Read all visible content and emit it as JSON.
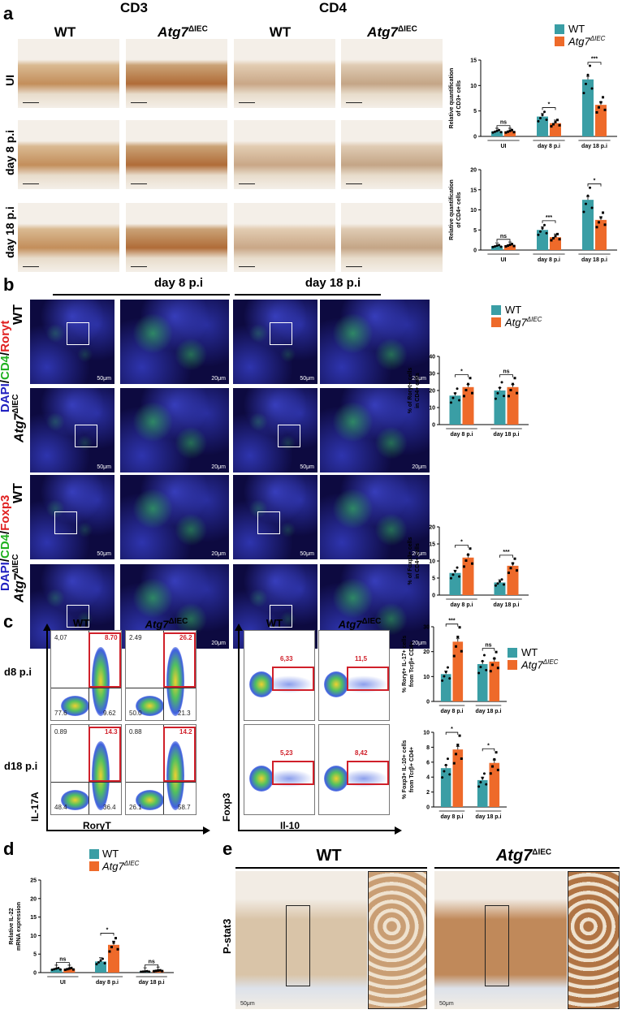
{
  "colors": {
    "wt": "#3a9ea5",
    "ko": "#ee6a2a",
    "gate": "#d0202a"
  },
  "panel_labels": {
    "a": "a",
    "b": "b",
    "c": "c",
    "d": "d",
    "e": "e"
  },
  "legend": {
    "wt": "WT",
    "ko_base": "Atg7",
    "ko_sup": "ΔIEC"
  },
  "panel_a": {
    "stain_cd3": "CD3",
    "stain_cd4": "CD4",
    "col_wt": "WT",
    "col_ko": "Atg7",
    "col_ko_sup": "ΔIEC",
    "rows": [
      "UI",
      "day 8 p.i",
      "day 18 p.i"
    ]
  },
  "panel_b": {
    "day8": "day 8 p.i",
    "day18": "day 18 p.i",
    "row_wt": "WT",
    "row_ko": "Atg7",
    "row_ko_sup": "ΔIEC",
    "stain1": {
      "dapi": "DAPI",
      "sep1": "/",
      "cd4": "CD4",
      "sep2": "/",
      "marker": "Roryt"
    },
    "stain2": {
      "dapi": "DAPI",
      "sep1": "/",
      "cd4": "CD4",
      "sep2": "/",
      "marker": "Foxp3"
    },
    "scale_50": "50μm",
    "scale_20": "20μm"
  },
  "panel_c": {
    "col_wt": "WT",
    "col_ko": "Atg7",
    "col_ko_sup": "ΔIEC",
    "row_d8": "d8 p.i",
    "row_d18": "d18 p.i",
    "y_left": "IL-17A",
    "x_left": "RorγT",
    "y_right": "Foxp3",
    "x_right": "Il-10",
    "quadrants": {
      "wt_d8": {
        "ul": "4,07",
        "ur": "8.70",
        "ll": "77.6",
        "lr": "9.62"
      },
      "ko_d8": {
        "ul": "2.49",
        "ur": "26.2",
        "ll": "50.0",
        "lr": "21.3"
      },
      "wt_d18": {
        "ul": "0.89",
        "ur": "14.3",
        "ll": "48.4",
        "lr": "36.4"
      },
      "ko_d18": {
        "ul": "0.88",
        "ur": "14.2",
        "ll": "26.1",
        "lr": "58.7"
      }
    },
    "foxp3_gates": {
      "wt_d8": "6,33",
      "ko_d8": "11,5",
      "wt_d18": "5,23",
      "ko_d18": "8,42"
    }
  },
  "panel_e": {
    "wt": "WT",
    "ko": "Atg7",
    "ko_sup": "ΔIEC",
    "row": "P-stat3",
    "scale_50": "50μm"
  },
  "chart_data": [
    {
      "id": "a_cd3",
      "type": "bar",
      "ylabel": [
        "Relative quantification",
        "of CD3+ cells"
      ],
      "categories": [
        "UI",
        "day 8 p.i",
        "day 18 p.i"
      ],
      "ylim": [
        0,
        15
      ],
      "yticks": [
        0,
        5,
        10,
        15
      ],
      "series": [
        {
          "name": "WT",
          "values": [
            1.0,
            3.9,
            11.2
          ]
        },
        {
          "name": "Atg7ΔIEC",
          "values": [
            1.0,
            2.6,
            6.2
          ]
        }
      ],
      "significance": [
        "ns",
        "*",
        "***"
      ]
    },
    {
      "id": "a_cd4",
      "type": "bar",
      "ylabel": [
        "Relative quantification",
        "of CD4+ cells"
      ],
      "categories": [
        "UI",
        "day 8 p.i",
        "day 18 p.i"
      ],
      "ylim": [
        0,
        20
      ],
      "yticks": [
        0,
        5,
        10,
        15,
        20
      ],
      "series": [
        {
          "name": "WT",
          "values": [
            1.0,
            5.0,
            12.5
          ]
        },
        {
          "name": "Atg7ΔIEC",
          "values": [
            1.2,
            3.2,
            7.5
          ]
        }
      ],
      "significance": [
        "ns",
        "***",
        "*"
      ]
    },
    {
      "id": "b_roryt",
      "type": "bar",
      "ylabel": [
        "% of Roryt+ cells",
        "in CD4+ cells"
      ],
      "categories": [
        "day 8 p.i",
        "day 18 p.i"
      ],
      "ylim": [
        0,
        40
      ],
      "yticks": [
        0,
        10,
        20,
        30,
        40
      ],
      "series": [
        {
          "name": "WT",
          "values": [
            17,
            20
          ]
        },
        {
          "name": "Atg7ΔIEC",
          "values": [
            22,
            22
          ]
        }
      ],
      "significance": [
        "*",
        "ns"
      ]
    },
    {
      "id": "b_foxp3",
      "type": "bar",
      "ylabel": [
        "% of Foxp3+ cells",
        "in CD4+ cells"
      ],
      "categories": [
        "day 8 p.i",
        "day 18 p.i"
      ],
      "ylim": [
        0,
        20
      ],
      "yticks": [
        0,
        5,
        10,
        15,
        20
      ],
      "series": [
        {
          "name": "WT",
          "values": [
            6.5,
            3.7
          ]
        },
        {
          "name": "Atg7ΔIEC",
          "values": [
            11,
            8.6
          ]
        }
      ],
      "significance": [
        "*",
        "***"
      ]
    },
    {
      "id": "c_roryt_il17",
      "type": "bar",
      "ylabel": [
        "% Rorγt+ IL-17+ cells",
        "from Tcrβ+ CD4+"
      ],
      "categories": [
        "day 8 p.i",
        "day 18 p.i"
      ],
      "ylim": [
        0,
        30
      ],
      "yticks": [
        0,
        10,
        20,
        30
      ],
      "series": [
        {
          "name": "WT",
          "values": [
            11,
            15
          ]
        },
        {
          "name": "Atg7ΔIEC",
          "values": [
            24,
            16
          ]
        }
      ],
      "significance": [
        "***",
        "ns"
      ]
    },
    {
      "id": "c_foxp3_il10",
      "type": "bar",
      "ylabel": [
        "% Foxp3+ IL-10+ cells",
        "from Tcrβ+ CD4+"
      ],
      "categories": [
        "day 8 p.i",
        "day 18 p.i"
      ],
      "ylim": [
        0,
        10
      ],
      "yticks": [
        0,
        2,
        4,
        6,
        8,
        10
      ],
      "series": [
        {
          "name": "WT",
          "values": [
            5.2,
            3.6
          ]
        },
        {
          "name": "Atg7ΔIEC",
          "values": [
            7.7,
            5.9
          ]
        }
      ],
      "significance": [
        "*",
        "*"
      ]
    },
    {
      "id": "d_il22",
      "type": "bar",
      "ylabel": [
        "Relative IL-22",
        "mRNA expression"
      ],
      "categories": [
        "UI",
        "day 8 p.i",
        "day 18 p.i"
      ],
      "ylim": [
        0,
        25
      ],
      "yticks": [
        0,
        5,
        10,
        15,
        20,
        25
      ],
      "series": [
        {
          "name": "WT",
          "values": [
            1.0,
            3.0,
            0.3
          ]
        },
        {
          "name": "Atg7ΔIEC",
          "values": [
            1.0,
            7.5,
            0.5
          ]
        }
      ],
      "significance": [
        "ns",
        "*",
        "ns"
      ]
    }
  ]
}
